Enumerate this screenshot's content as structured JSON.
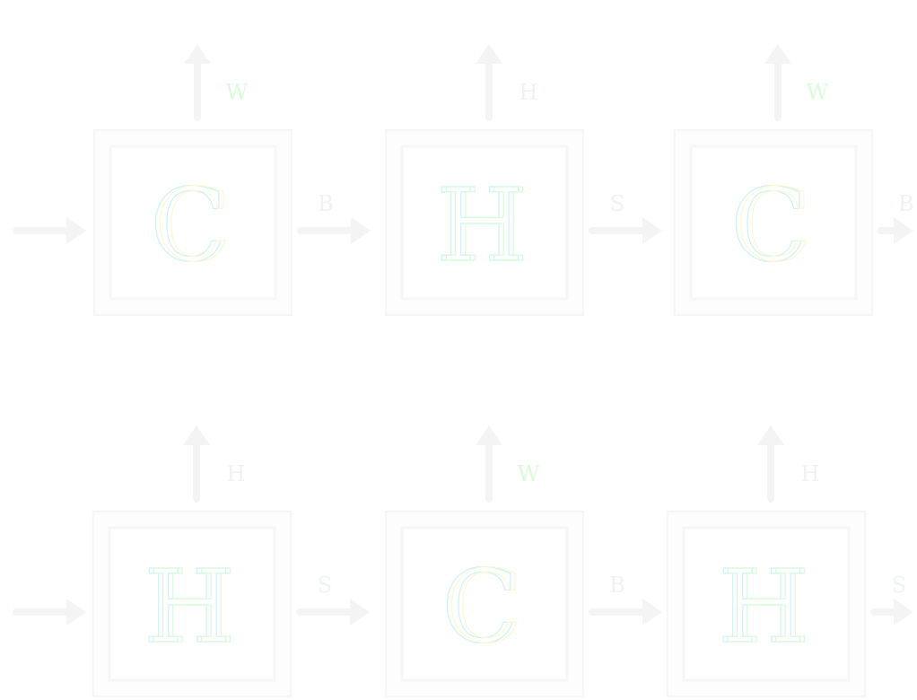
{
  "palette": {
    "background": "#ffffff",
    "frame_fill": "#fdfdfd",
    "frame_border": "#f6f6f6",
    "arrow": "#f4f4f4",
    "outline_cyan": "#c8f4f8",
    "outline_yellow": "#fcf8d0",
    "outline_green": "#d8fcd8",
    "faint_label": "#eef2f2"
  },
  "rows": [
    {
      "blocks": [
        {
          "letter": "C",
          "top_label": "W",
          "right_label": "B"
        },
        {
          "letter": "H",
          "top_label": "H",
          "right_label": "S"
        },
        {
          "letter": "C",
          "top_label": "W",
          "right_label": "B"
        }
      ]
    },
    {
      "blocks": [
        {
          "letter": "H",
          "top_label": "H",
          "right_label": "S"
        },
        {
          "letter": "C",
          "top_label": "W",
          "right_label": "B"
        },
        {
          "letter": "H",
          "top_label": "H",
          "right_label": "S"
        }
      ]
    }
  ]
}
